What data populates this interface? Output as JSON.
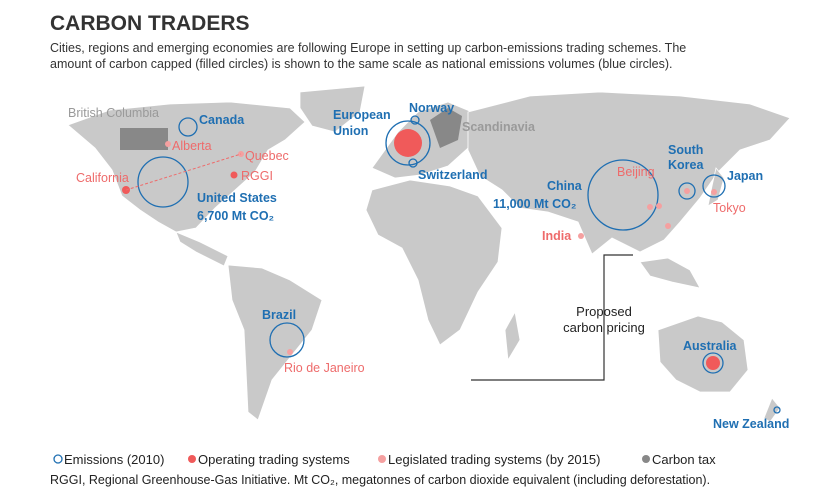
{
  "header": {
    "title": "CARBON TRADERS",
    "subtitle": [
      "Cities, regions and emerging economies are following Europe in setting up carbon-emissions trading schemes. The",
      "amount of carbon capped (filled circles) is shown to the same scale as national emissions volumes (blue circles)."
    ]
  },
  "labels": {
    "british_columbia": "British Columbia",
    "canada": "Canada",
    "alberta": "Alberta",
    "quebec": "Quebec",
    "california": "California",
    "rggi": "RGGI",
    "united_states": "United States",
    "us_emissions": "6,700 Mt CO₂",
    "european_union": [
      "European",
      "Union"
    ],
    "norway": "Norway",
    "scandinavia": "Scandinavia",
    "switzerland": "Switzerland",
    "china": "China",
    "china_emissions": "11,000 Mt CO₂",
    "beijing": "Beijing",
    "south_korea": [
      "South",
      "Korea"
    ],
    "japan": "Japan",
    "tokyo": "Tokyo",
    "india": "India",
    "brazil": "Brazil",
    "rio": "Rio de Janeiro",
    "australia": "Australia",
    "new_zealand": "New Zealand"
  },
  "callout": [
    "Proposed",
    "carbon pricing"
  ],
  "legend": [
    "Emissions (2010)",
    "Operating trading systems",
    "Legislated trading systems (by 2015)",
    "Carbon tax"
  ],
  "footnote": "RGGI, Regional Greenhouse-Gas Initiative. Mt CO₂, megatonnes of carbon dioxide equivalent (including deforestation)."
}
